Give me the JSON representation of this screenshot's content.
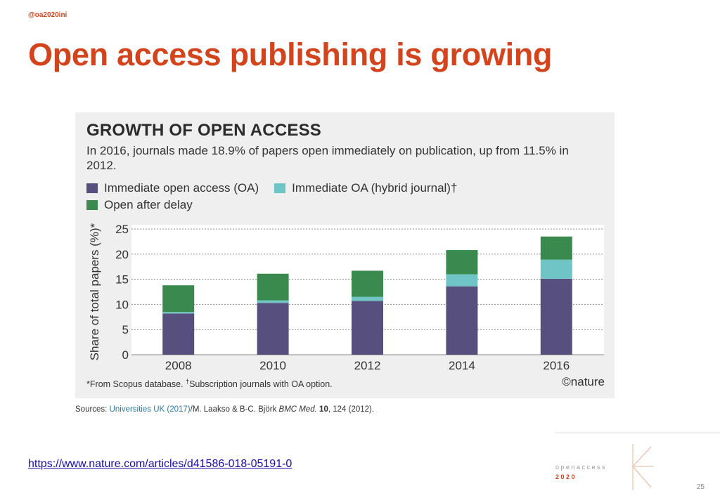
{
  "handle": "@oa2020ini",
  "title": "Open access publishing is growing",
  "figure": {
    "title": "GROWTH OF OPEN ACCESS",
    "subtitle": "In 2016, journals made 18.9% of papers open immediately on publication, up from 11.5% in 2012.",
    "footnote_a": "*From Scopus database. ",
    "footnote_dagger": "†",
    "footnote_b": "Subscription journals with OA option.",
    "credit": "©nature"
  },
  "sources": {
    "prefix": "Sources: ",
    "link": "Universities UK (2017)",
    "mid": "/M. Laakso & B-C. Björk ",
    "journal": "BMC Med.",
    "volume": " 10",
    "tail": ", 124 (2012)."
  },
  "url": "https://www.nature.com/articles/d41586-018-05191-0",
  "logo": {
    "line1": "o p e n   a c c e s s",
    "line2": "2 0 2 0"
  },
  "page_number": "25",
  "chart_data": {
    "type": "bar",
    "stacked": true,
    "categories": [
      "2008",
      "2010",
      "2012",
      "2014",
      "2016"
    ],
    "series": [
      {
        "name": "Immediate open access (OA)",
        "color": "#57507e",
        "values": [
          8.2,
          10.3,
          10.7,
          13.6,
          15.1
        ]
      },
      {
        "name": "Immediate OA (hybrid journal)†",
        "color": "#6fc5c5",
        "values": [
          0.3,
          0.5,
          0.8,
          2.4,
          3.8
        ]
      },
      {
        "name": "Open after delay",
        "color": "#3a8a4f",
        "values": [
          5.3,
          5.3,
          5.2,
          4.8,
          4.6
        ]
      }
    ],
    "ylabel": "Share of total papers (%)*",
    "yticks": [
      0,
      5,
      10,
      15,
      20,
      25
    ],
    "ylim": [
      0,
      25
    ],
    "grid": true
  }
}
